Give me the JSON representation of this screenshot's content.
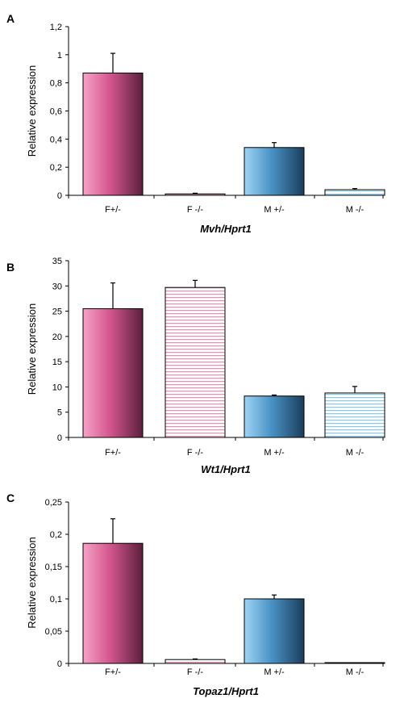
{
  "chart_data": [
    {
      "type": "bar",
      "panel": "A",
      "xlabel": "Mvh/Hprt1",
      "ylabel": "Relative expression",
      "categories": [
        "F+/-",
        "F -/-",
        "M +/-",
        "M -/-"
      ],
      "values": [
        0.87,
        0.01,
        0.34,
        0.04
      ],
      "errors": [
        0.14,
        0.005,
        0.035,
        0.008
      ],
      "ylim": [
        0,
        1.2
      ],
      "yticks": [
        "0",
        "0,2",
        "0,4",
        "0,6",
        "0,8",
        "1",
        "1,2"
      ],
      "grid": false
    },
    {
      "type": "bar",
      "panel": "B",
      "xlabel": "Wt1/Hprt1",
      "ylabel": "Relative expression",
      "categories": [
        "F+/-",
        "F -/-",
        "M +/-",
        "M -/-"
      ],
      "values": [
        25.5,
        29.7,
        8.2,
        8.8
      ],
      "errors": [
        5.1,
        1.4,
        0.2,
        1.3
      ],
      "ylim": [
        0,
        35
      ],
      "yticks": [
        "0",
        "5",
        "10",
        "15",
        "20",
        "25",
        "30",
        "35"
      ],
      "grid": false
    },
    {
      "type": "bar",
      "panel": "C",
      "xlabel": "Topaz1/Hprt1",
      "ylabel": "Relative expression",
      "categories": [
        "F+/-",
        "F -/-",
        "M +/-",
        "M -/-"
      ],
      "values": [
        0.186,
        0.006,
        0.1,
        0.001
      ],
      "errors": [
        0.038,
        0.001,
        0.006,
        0.0
      ],
      "ylim": [
        0,
        0.25
      ],
      "yticks": [
        "0",
        "0,05",
        "0,1",
        "0,15",
        "0,2",
        "0,25"
      ],
      "grid": false
    }
  ],
  "bar_styles": [
    {
      "fill": "gradient",
      "colors": [
        "#f5a3c7",
        "#d4568e",
        "#5a1f3c"
      ]
    },
    {
      "fill": "stripes",
      "colors": [
        "#ffffff",
        "#e890b4"
      ]
    },
    {
      "fill": "gradient",
      "colors": [
        "#9ed4f5",
        "#4a93c4",
        "#1a3d5c"
      ]
    },
    {
      "fill": "stripes",
      "colors": [
        "#ffffff",
        "#8cc8ec"
      ]
    }
  ]
}
